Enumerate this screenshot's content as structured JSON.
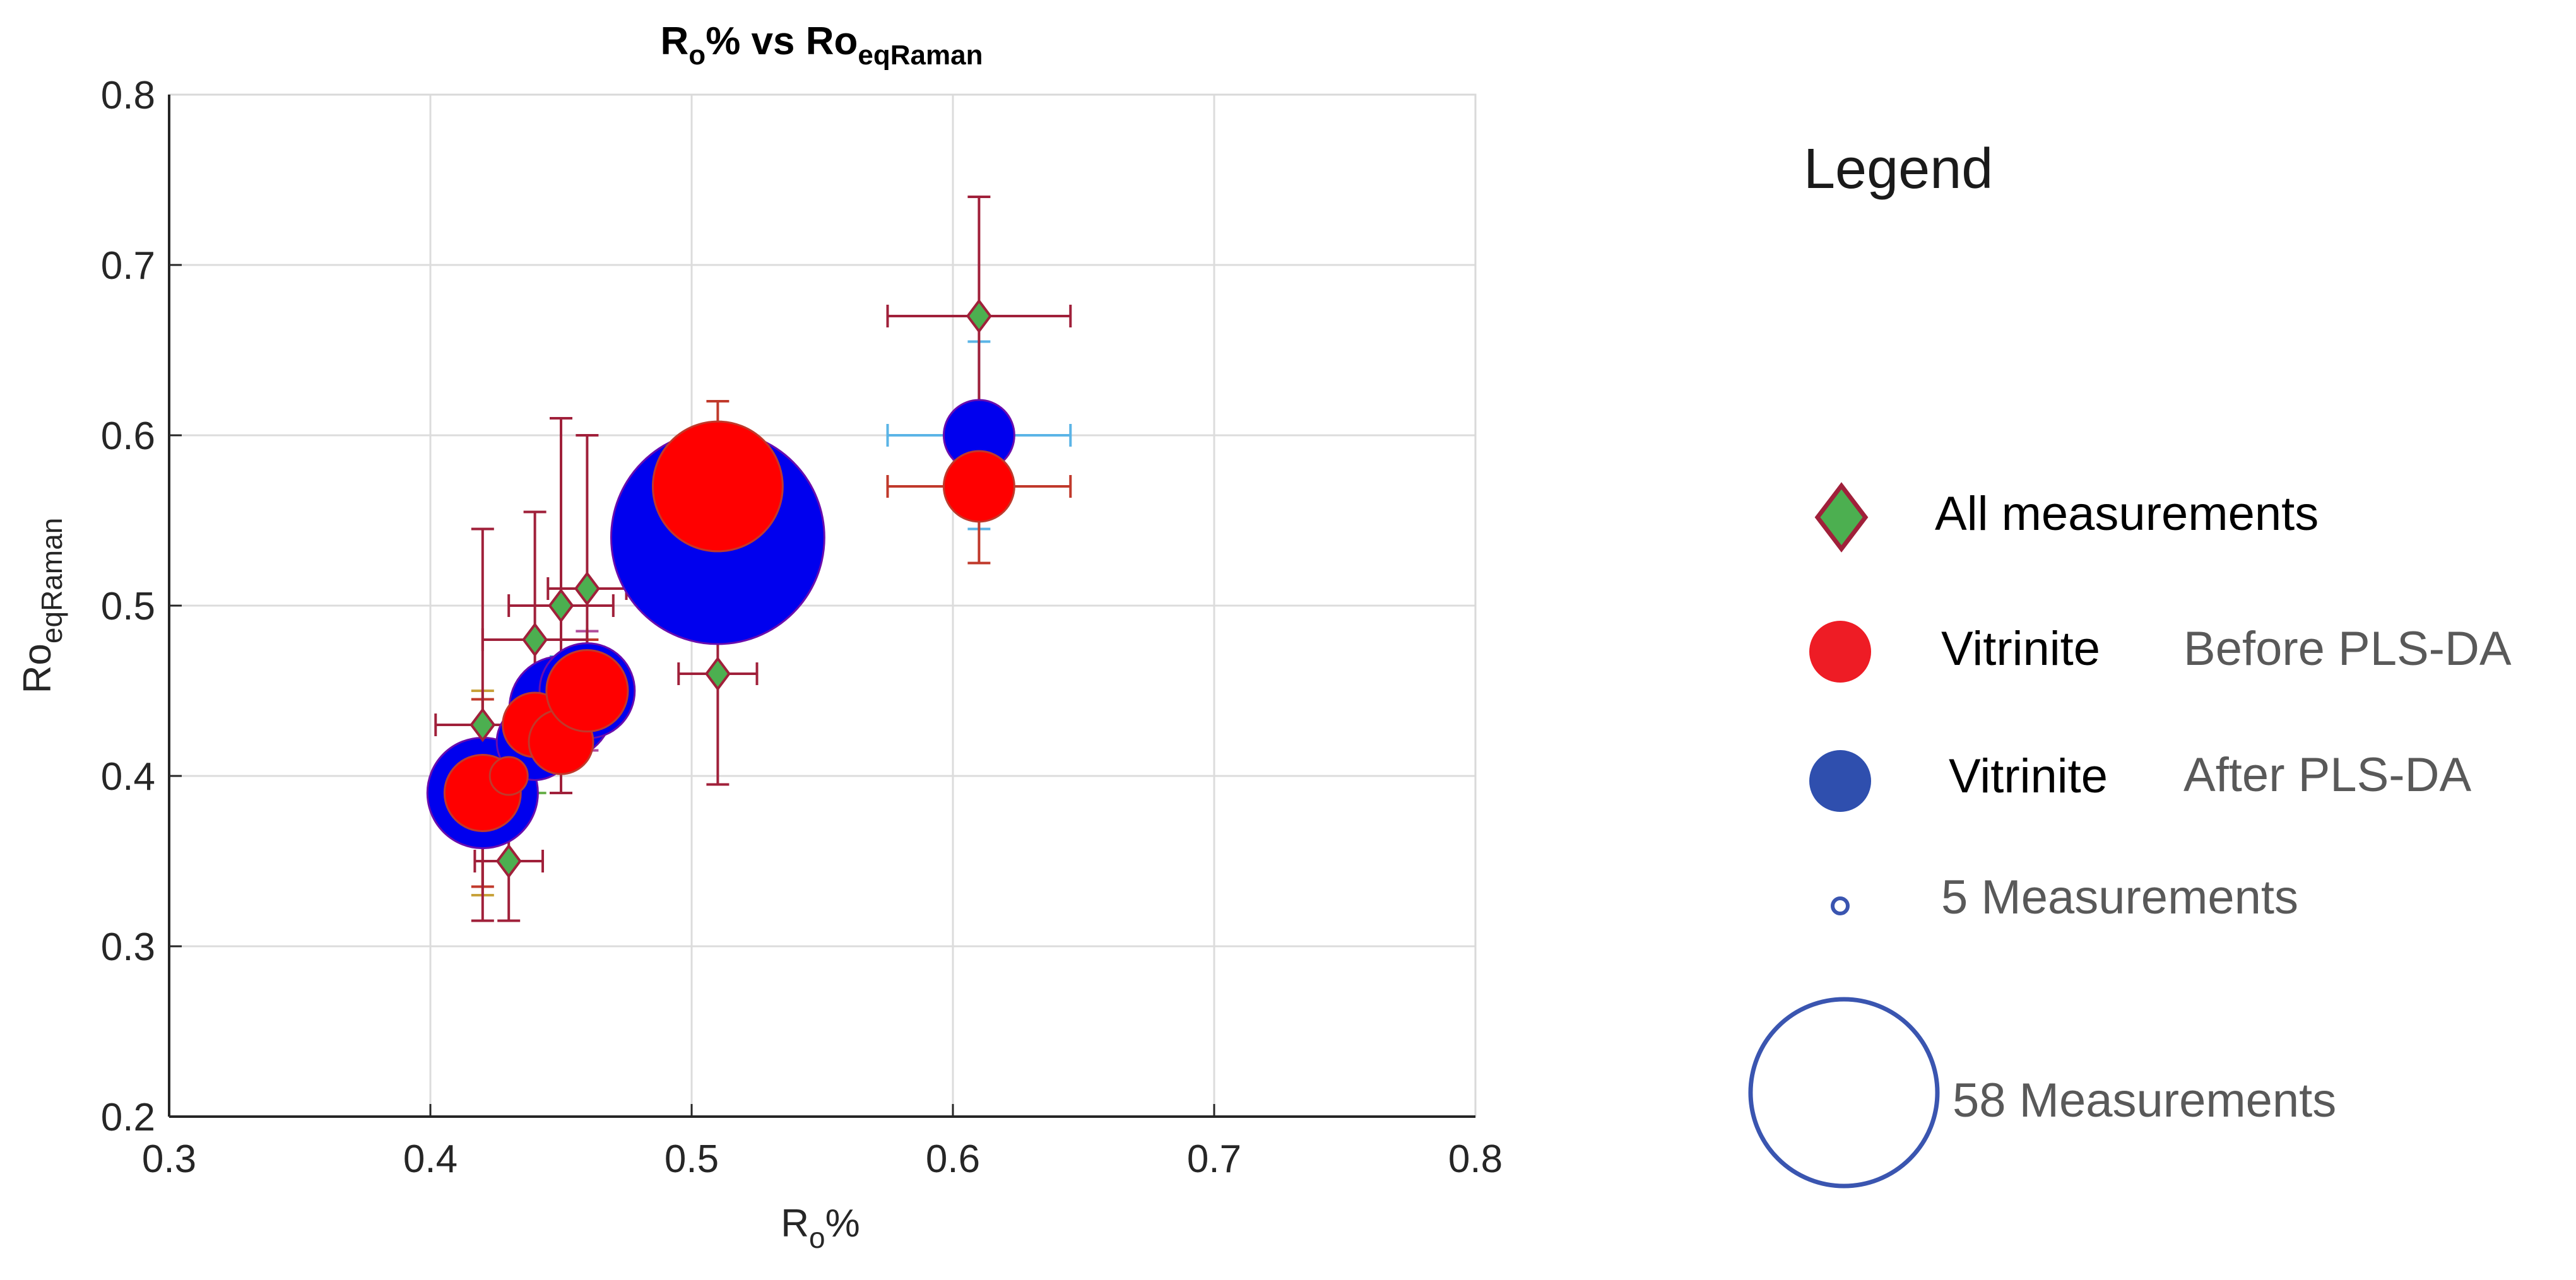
{
  "chart_data": {
    "type": "scatter",
    "title": {
      "main": "R",
      "sub": "o",
      "mid": "% vs Ro",
      "sub2": "eqRaman"
    },
    "xlabel": {
      "main": "R",
      "sub": "o",
      "suffix": "%"
    },
    "ylabel": {
      "main": "Ro",
      "sub": "eqRaman"
    },
    "xlim": [
      0.3,
      0.8
    ],
    "ylim": [
      0.2,
      0.8
    ],
    "xticks": [
      "0.3",
      "0.4",
      "0.5",
      "0.6",
      "0.7",
      "0.8"
    ],
    "yticks": [
      "0.2",
      "0.3",
      "0.4",
      "0.5",
      "0.6",
      "0.7",
      "0.8"
    ],
    "grid": true,
    "series": [
      {
        "name": "All measurements",
        "marker": "diamond",
        "color": "#4caf50",
        "edge": "#a0203a",
        "points": [
          {
            "x": 0.42,
            "y": 0.43,
            "xerr": 0.018,
            "yerr": 0.115
          },
          {
            "x": 0.43,
            "y": 0.35,
            "xerr": 0.013,
            "yerr": 0.035
          },
          {
            "x": 0.44,
            "y": 0.48,
            "xerr": 0.02,
            "yerr": 0.075
          },
          {
            "x": 0.45,
            "y": 0.5,
            "xerr": 0.02,
            "yerr": 0.11
          },
          {
            "x": 0.46,
            "y": 0.51,
            "xerr": 0.015,
            "yerr": 0.09
          },
          {
            "x": 0.51,
            "y": 0.46,
            "xerr": 0.015,
            "yerr": 0.065
          },
          {
            "x": 0.61,
            "y": 0.67,
            "xerr": 0.035,
            "yerr": 0.07
          }
        ]
      },
      {
        "name": "Vitrinite After PLS-DA",
        "marker": "circle",
        "color": "#0000ee",
        "edge": "#6a0dad",
        "points": [
          {
            "x": 0.42,
            "y": 0.39,
            "n": 14,
            "xerr": 0.02,
            "yerr": 0.06
          },
          {
            "x": 0.44,
            "y": 0.42,
            "n": 6,
            "xerr": 0.012,
            "yerr": 0.03
          },
          {
            "x": 0.45,
            "y": 0.44,
            "n": 12,
            "xerr": 0.012,
            "yerr": 0.03
          },
          {
            "x": 0.46,
            "y": 0.45,
            "n": 10,
            "xerr": 0.015,
            "yerr": 0.035
          },
          {
            "x": 0.51,
            "y": 0.54,
            "n": 58,
            "xerr": 0.015,
            "yerr": 0.055
          },
          {
            "x": 0.61,
            "y": 0.6,
            "n": 5,
            "xerr": 0.035,
            "yerr": 0.055
          }
        ]
      },
      {
        "name": "Vitrinite Before PLS-DA",
        "marker": "circle",
        "color": "#ff0000",
        "edge": "#a0203a",
        "points": [
          {
            "x": 0.42,
            "y": 0.39,
            "n": 6,
            "xerr": 0.012,
            "yerr": 0.055
          },
          {
            "x": 0.43,
            "y": 0.4,
            "n": 1,
            "xerr": 0.008,
            "yerr": 0.02
          },
          {
            "x": 0.44,
            "y": 0.43,
            "n": 4,
            "xerr": 0.01,
            "yerr": 0.025
          },
          {
            "x": 0.45,
            "y": 0.42,
            "n": 4,
            "xerr": 0.01,
            "yerr": 0.03
          },
          {
            "x": 0.46,
            "y": 0.45,
            "n": 7,
            "xerr": 0.012,
            "yerr": 0.03
          },
          {
            "x": 0.51,
            "y": 0.57,
            "n": 20,
            "xerr": 0.015,
            "yerr": 0.05
          },
          {
            "x": 0.61,
            "y": 0.57,
            "n": 5,
            "xerr": 0.035,
            "yerr": 0.045
          }
        ]
      }
    ]
  },
  "legend": {
    "title": "Legend",
    "items": {
      "all": "All measurements",
      "before_name": "Vitrinite",
      "before_stage": "Before PLS-DA",
      "after_name": "Vitrinite",
      "after_stage": "After PLS-DA",
      "size_small": "5 Measurements",
      "size_large": "58 Measurements"
    }
  },
  "colors": {
    "diamond_fill": "#4caf50",
    "diamond_edge": "#a0203a",
    "before_fill": "#ee1c25",
    "after_fill": "#2f4fae",
    "size_ring": "#3a55b0",
    "axis": "#262626",
    "grid": "#dcdcdc"
  }
}
